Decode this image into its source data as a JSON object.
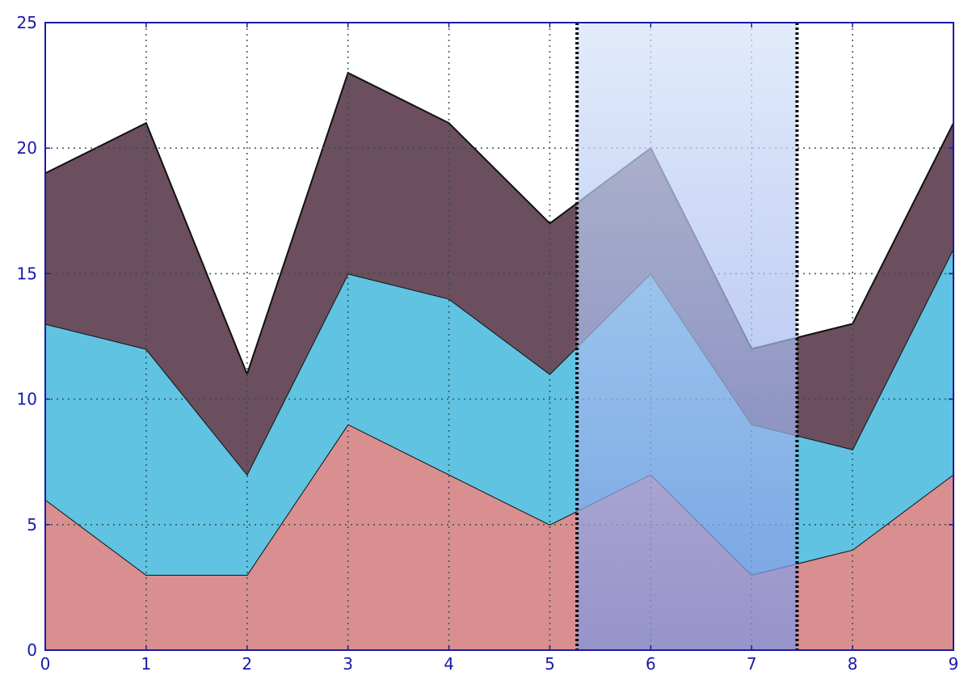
{
  "chart_data": {
    "type": "area",
    "stacked": true,
    "x": [
      0,
      1,
      2,
      3,
      4,
      5,
      6,
      7,
      8,
      9
    ],
    "series": [
      {
        "values": [
          6,
          3,
          3,
          9,
          7,
          5,
          7,
          3,
          4,
          7
        ],
        "color": "#d98f8f"
      },
      {
        "values": [
          7,
          9,
          4,
          6,
          7,
          6,
          8,
          6,
          4,
          9
        ],
        "color": "#5fc3e1"
      },
      {
        "values": [
          6,
          9,
          4,
          8,
          7,
          6,
          5,
          3,
          5,
          5
        ],
        "color": "#6b4f5e"
      }
    ],
    "xlim": [
      0,
      9
    ],
    "ylim": [
      0,
      25
    ],
    "xticks": [
      "0",
      "1",
      "2",
      "3",
      "4",
      "5",
      "6",
      "7",
      "8",
      "9"
    ],
    "yticks": [
      "0",
      "5",
      "10",
      "15",
      "20",
      "25"
    ],
    "grid": true,
    "highlight_span": {
      "x_start": 5.27,
      "x_end": 7.45,
      "gradient_top": "#d6e4fa",
      "gradient_bottom": "#7d95e3",
      "border_style": "dotted"
    },
    "axis_color": "#1a1aa8"
  }
}
